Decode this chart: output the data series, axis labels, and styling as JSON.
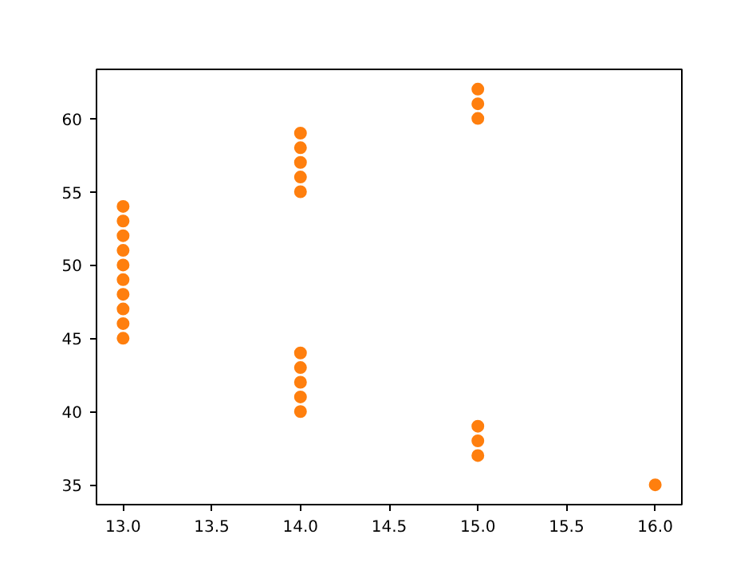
{
  "chart_data": {
    "type": "scatter",
    "x": [
      13,
      13,
      13,
      13,
      13,
      13,
      13,
      13,
      13,
      13,
      14,
      14,
      14,
      14,
      14,
      14,
      14,
      14,
      14,
      14,
      15,
      15,
      15,
      15,
      15,
      15,
      16
    ],
    "series": [
      {
        "color": "#ff7f0e",
        "values": [
          45,
          46,
          47,
          48,
          49,
          50,
          51,
          52,
          53,
          54,
          55,
          56,
          57,
          58,
          59,
          40,
          41,
          42,
          43,
          44,
          60,
          61,
          62,
          37,
          38,
          39,
          35
        ]
      }
    ],
    "xlim": [
      12.85,
      16.15
    ],
    "ylim": [
      33.65,
      63.35
    ],
    "xticks": [
      {
        "value": 13,
        "label": "13.0"
      },
      {
        "value": 13.5,
        "label": "13.5"
      },
      {
        "value": 14,
        "label": "14.0"
      },
      {
        "value": 14.5,
        "label": "14.5"
      },
      {
        "value": 15,
        "label": "15.0"
      },
      {
        "value": 15.5,
        "label": "15.5"
      },
      {
        "value": 16,
        "label": "16.0"
      }
    ],
    "yticks": [
      35,
      40,
      45,
      50,
      55,
      60
    ],
    "grid": false,
    "marker": "circle"
  }
}
